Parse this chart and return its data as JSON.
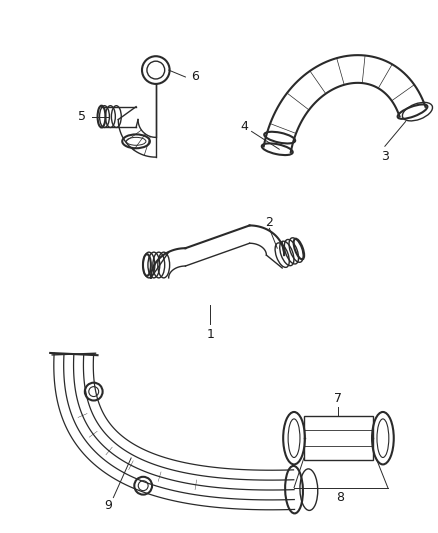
{
  "background_color": "#ffffff",
  "line_color": "#2a2a2a",
  "label_color": "#1a1a1a",
  "fig_width": 4.38,
  "fig_height": 5.33,
  "dpi": 100
}
